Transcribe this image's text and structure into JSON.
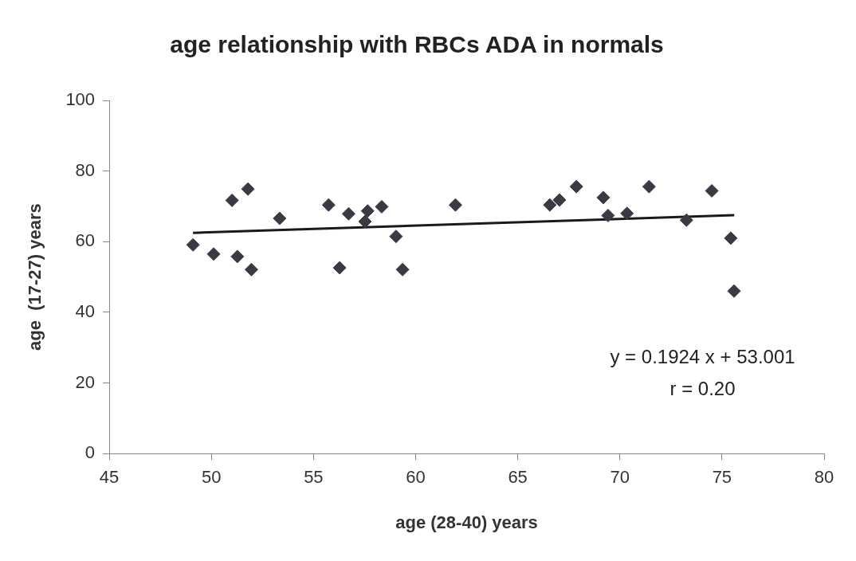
{
  "chart_data": {
    "type": "scatter",
    "title": "age relationship with RBCs ADA in normals",
    "xlabel": "age (28-40) years",
    "ylabel": "age  (17-27) years",
    "xlim": [
      45,
      80
    ],
    "xticks": [
      45,
      50,
      55,
      60,
      65,
      70,
      75,
      80
    ],
    "ylim": [
      0,
      100
    ],
    "yticks": [
      0,
      20,
      40,
      60,
      80,
      100
    ],
    "marker": "diamond",
    "legend": false,
    "grid": false,
    "annotations": [
      "y = 0.1924 x + 53.001",
      "r = 0.20"
    ],
    "series": [
      {
        "color": "#3a3a44",
        "x": [
          49.1,
          50.11,
          51.01,
          51.27,
          51.79,
          51.96,
          53.34,
          55.74,
          56.28,
          56.72,
          57.52,
          57.65,
          58.34,
          59.04,
          59.36,
          61.95,
          66.57,
          67.04,
          67.87,
          69.19,
          69.42,
          70.35,
          71.43,
          73.26,
          74.5,
          75.43,
          75.59
        ],
        "values": [
          59.1,
          56.5,
          71.7,
          55.8,
          74.9,
          52.1,
          66.6,
          70.4,
          52.6,
          67.9,
          65.7,
          68.7,
          69.9,
          61.5,
          52.1,
          70.4,
          70.4,
          71.8,
          75.6,
          72.5,
          67.4,
          68.0,
          75.6,
          66.1,
          74.4,
          61.0,
          46.0
        ]
      },
      {
        "type": "line",
        "color": "#1a1a1a",
        "x": [
          49.1,
          75.6
        ],
        "values": [
          62.5,
          67.5
        ],
        "marker": "none"
      }
    ]
  }
}
